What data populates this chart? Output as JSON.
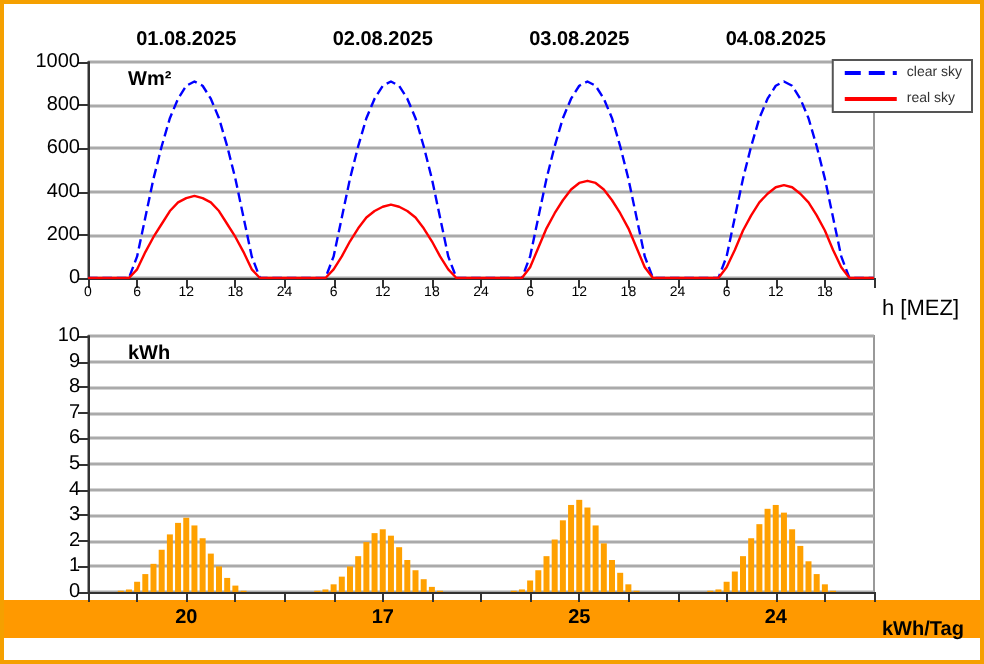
{
  "chart_data": [
    {
      "type": "line",
      "ylabel": "Wm²",
      "xlabel": "h [MEZ]",
      "xlim": [
        "2025-08-01T00:00",
        "2025-08-05T00:00"
      ],
      "ylim": [
        0,
        1000
      ],
      "yticks": [
        0,
        200,
        400,
        600,
        800,
        1000
      ],
      "xticks": [
        {
          "value": "2025-08-01T00:00",
          "label": "0"
        },
        {
          "value": "2025-08-01T06:00",
          "label": "6"
        },
        {
          "value": "2025-08-01T12:00",
          "label": "12"
        },
        {
          "value": "2025-08-01T18:00",
          "label": "18"
        },
        {
          "value": "2025-08-02T00:00",
          "label": "24"
        },
        {
          "value": "2025-08-02T06:00",
          "label": "6"
        },
        {
          "value": "2025-08-02T12:00",
          "label": "12"
        },
        {
          "value": "2025-08-02T18:00",
          "label": "18"
        },
        {
          "value": "2025-08-03T00:00",
          "label": "24"
        },
        {
          "value": "2025-08-03T06:00",
          "label": "6"
        },
        {
          "value": "2025-08-03T12:00",
          "label": "12"
        },
        {
          "value": "2025-08-03T18:00",
          "label": "18"
        },
        {
          "value": "2025-08-04T00:00",
          "label": "24"
        },
        {
          "value": "2025-08-04T06:00",
          "label": "6"
        },
        {
          "value": "2025-08-04T12:00",
          "label": "12"
        },
        {
          "value": "2025-08-04T18:00",
          "label": "18"
        },
        {
          "value": "2025-08-05T00:00",
          "label": null
        }
      ],
      "grid": "y",
      "legend": "top right",
      "marker": "none",
      "annotations": [
        "01.08.2025",
        "02.08.2025",
        "03.08.2025",
        "04.08.2025"
      ],
      "x": [
        "2025-08-01T00:00",
        "2025-08-01T05:00",
        "2025-08-01T06:00",
        "2025-08-01T07:00",
        "2025-08-01T08:00",
        "2025-08-01T09:00",
        "2025-08-01T10:00",
        "2025-08-01T11:00",
        "2025-08-01T12:00",
        "2025-08-01T13:00",
        "2025-08-01T14:00",
        "2025-08-01T15:00",
        "2025-08-01T16:00",
        "2025-08-01T17:00",
        "2025-08-01T18:00",
        "2025-08-01T19:00",
        "2025-08-01T20:00",
        "2025-08-01T21:00",
        "2025-08-02T05:00",
        "2025-08-02T06:00",
        "2025-08-02T07:00",
        "2025-08-02T08:00",
        "2025-08-02T09:00",
        "2025-08-02T10:00",
        "2025-08-02T11:00",
        "2025-08-02T12:00",
        "2025-08-02T13:00",
        "2025-08-02T14:00",
        "2025-08-02T15:00",
        "2025-08-02T16:00",
        "2025-08-02T17:00",
        "2025-08-02T18:00",
        "2025-08-02T19:00",
        "2025-08-02T20:00",
        "2025-08-02T21:00",
        "2025-08-03T05:00",
        "2025-08-03T06:00",
        "2025-08-03T07:00",
        "2025-08-03T08:00",
        "2025-08-03T09:00",
        "2025-08-03T10:00",
        "2025-08-03T11:00",
        "2025-08-03T12:00",
        "2025-08-03T13:00",
        "2025-08-03T14:00",
        "2025-08-03T15:00",
        "2025-08-03T16:00",
        "2025-08-03T17:00",
        "2025-08-03T18:00",
        "2025-08-03T19:00",
        "2025-08-03T20:00",
        "2025-08-03T21:00",
        "2025-08-04T05:00",
        "2025-08-04T06:00",
        "2025-08-04T07:00",
        "2025-08-04T08:00",
        "2025-08-04T09:00",
        "2025-08-04T10:00",
        "2025-08-04T11:00",
        "2025-08-04T12:00",
        "2025-08-04T13:00",
        "2025-08-04T14:00",
        "2025-08-04T15:00",
        "2025-08-04T16:00",
        "2025-08-04T17:00",
        "2025-08-04T18:00",
        "2025-08-04T19:00",
        "2025-08-04T20:00",
        "2025-08-04T21:00",
        "2025-08-05T00:00"
      ],
      "series": [
        {
          "name": "clear sky",
          "color": "#0000ff",
          "line_style": "dashed",
          "values": [
            0,
            0,
            100,
            280,
            460,
            610,
            740,
            830,
            890,
            910,
            890,
            830,
            740,
            610,
            460,
            280,
            100,
            0,
            0,
            100,
            280,
            460,
            610,
            740,
            830,
            890,
            910,
            890,
            830,
            740,
            610,
            460,
            280,
            100,
            0,
            0,
            100,
            280,
            460,
            610,
            740,
            830,
            890,
            910,
            890,
            830,
            740,
            610,
            460,
            280,
            100,
            0,
            0,
            100,
            280,
            460,
            610,
            740,
            830,
            890,
            910,
            890,
            830,
            740,
            610,
            460,
            280,
            100,
            0,
            0
          ]
        },
        {
          "name": "real sky",
          "color": "#ff0000",
          "line_style": "solid",
          "values": [
            0,
            0,
            40,
            120,
            190,
            250,
            310,
            350,
            370,
            380,
            370,
            350,
            310,
            250,
            190,
            120,
            40,
            0,
            0,
            40,
            100,
            170,
            230,
            280,
            310,
            330,
            340,
            330,
            310,
            280,
            230,
            170,
            100,
            40,
            0,
            0,
            50,
            140,
            230,
            300,
            360,
            410,
            440,
            450,
            440,
            410,
            360,
            300,
            230,
            140,
            50,
            0,
            0,
            50,
            130,
            220,
            290,
            350,
            390,
            420,
            430,
            420,
            390,
            350,
            290,
            220,
            130,
            50,
            0,
            0
          ]
        }
      ]
    },
    {
      "type": "bar",
      "ylabel": "kWh",
      "xlabel": "kWh/Tag",
      "xlim": [
        "2025-08-01T00:00",
        "2025-08-05T00:00"
      ],
      "ylim": [
        0,
        10
      ],
      "yticks": [
        0,
        1,
        2,
        3,
        4,
        5,
        6,
        7,
        8,
        9,
        10
      ],
      "xticks": [
        {
          "value": "2025-08-01T00:00",
          "label": null
        },
        {
          "value": "2025-08-01T06:00",
          "label": null
        },
        {
          "value": "2025-08-01T12:00",
          "label": null
        },
        {
          "value": "2025-08-01T18:00",
          "label": null
        },
        {
          "value": "2025-08-02T00:00",
          "label": null
        },
        {
          "value": "2025-08-02T06:00",
          "label": null
        },
        {
          "value": "2025-08-02T12:00",
          "label": null
        },
        {
          "value": "2025-08-02T18:00",
          "label": null
        },
        {
          "value": "2025-08-03T00:00",
          "label": null
        },
        {
          "value": "2025-08-03T06:00",
          "label": null
        },
        {
          "value": "2025-08-03T12:00",
          "label": null
        },
        {
          "value": "2025-08-03T18:00",
          "label": null
        },
        {
          "value": "2025-08-04T00:00",
          "label": null
        },
        {
          "value": "2025-08-04T06:00",
          "label": null
        },
        {
          "value": "2025-08-04T12:00",
          "label": null
        },
        {
          "value": "2025-08-04T18:00",
          "label": null
        },
        {
          "value": "2025-08-05T00:00",
          "label": null
        }
      ],
      "tick_labels": "y",
      "grid": "y",
      "color": "#ffa000",
      "annotations": [
        "20",
        "17",
        "25",
        "24"
      ],
      "x": [
        "2025-08-01T04:00",
        "2025-08-01T05:00",
        "2025-08-01T06:00",
        "2025-08-01T07:00",
        "2025-08-01T08:00",
        "2025-08-01T09:00",
        "2025-08-01T10:00",
        "2025-08-01T11:00",
        "2025-08-01T12:00",
        "2025-08-01T13:00",
        "2025-08-01T14:00",
        "2025-08-01T15:00",
        "2025-08-01T16:00",
        "2025-08-01T17:00",
        "2025-08-01T18:00",
        "2025-08-01T19:00",
        "2025-08-02T04:00",
        "2025-08-02T05:00",
        "2025-08-02T06:00",
        "2025-08-02T07:00",
        "2025-08-02T08:00",
        "2025-08-02T09:00",
        "2025-08-02T10:00",
        "2025-08-02T11:00",
        "2025-08-02T12:00",
        "2025-08-02T13:00",
        "2025-08-02T14:00",
        "2025-08-02T15:00",
        "2025-08-02T16:00",
        "2025-08-02T17:00",
        "2025-08-02T18:00",
        "2025-08-02T19:00",
        "2025-08-03T04:00",
        "2025-08-03T05:00",
        "2025-08-03T06:00",
        "2025-08-03T07:00",
        "2025-08-03T08:00",
        "2025-08-03T09:00",
        "2025-08-03T10:00",
        "2025-08-03T11:00",
        "2025-08-03T12:00",
        "2025-08-03T13:00",
        "2025-08-03T14:00",
        "2025-08-03T15:00",
        "2025-08-03T16:00",
        "2025-08-03T17:00",
        "2025-08-03T18:00",
        "2025-08-03T19:00",
        "2025-08-04T04:00",
        "2025-08-04T05:00",
        "2025-08-04T06:00",
        "2025-08-04T07:00",
        "2025-08-04T08:00",
        "2025-08-04T09:00",
        "2025-08-04T10:00",
        "2025-08-04T11:00",
        "2025-08-04T12:00",
        "2025-08-04T13:00",
        "2025-08-04T14:00",
        "2025-08-04T15:00",
        "2025-08-04T16:00",
        "2025-08-04T17:00",
        "2025-08-04T18:00",
        "2025-08-04T19:00"
      ],
      "values": [
        0.05,
        0.1,
        0.4,
        0.7,
        1.1,
        1.65,
        2.25,
        2.7,
        2.9,
        2.6,
        2.1,
        1.5,
        1.0,
        0.55,
        0.25,
        0.05,
        0.05,
        0.1,
        0.3,
        0.6,
        1.0,
        1.4,
        1.95,
        2.3,
        2.45,
        2.2,
        1.75,
        1.25,
        0.85,
        0.5,
        0.2,
        0.05,
        0.05,
        0.1,
        0.45,
        0.85,
        1.4,
        2.05,
        2.8,
        3.4,
        3.6,
        3.3,
        2.6,
        1.9,
        1.25,
        0.75,
        0.3,
        0.05,
        0.05,
        0.1,
        0.4,
        0.8,
        1.4,
        2.1,
        2.65,
        3.25,
        3.4,
        3.1,
        2.45,
        1.8,
        1.2,
        0.7,
        0.3,
        0.05
      ]
    }
  ]
}
